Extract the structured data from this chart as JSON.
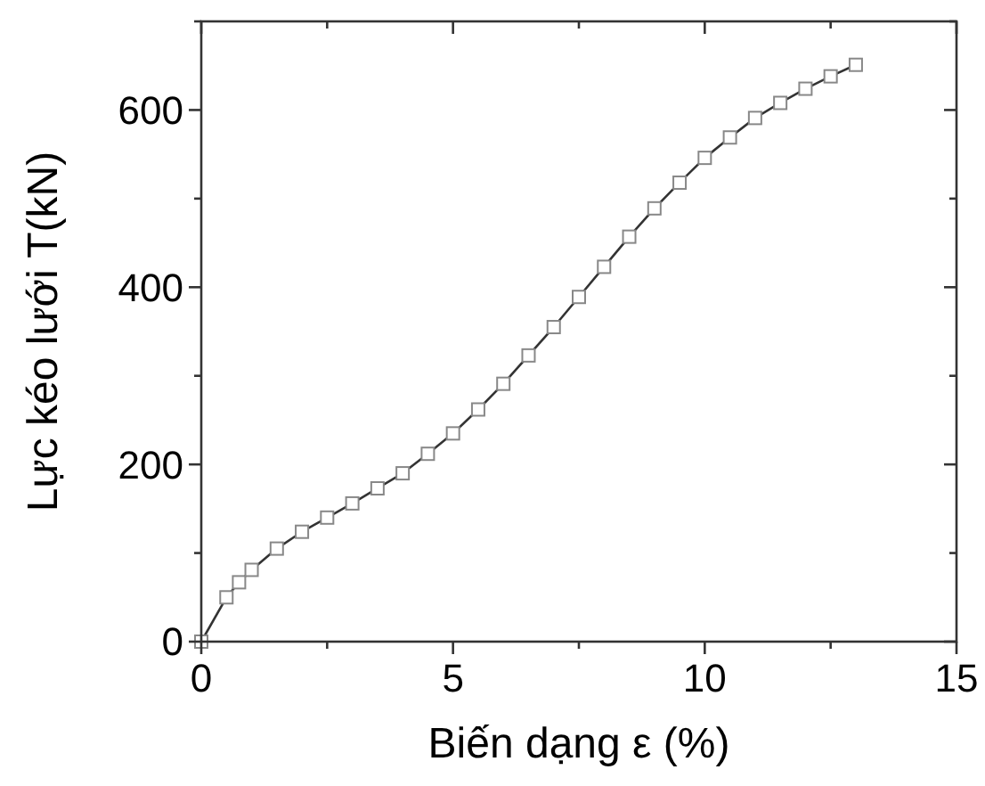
{
  "chart_data": {
    "type": "line",
    "xlabel": "Biến dạng ε (%)",
    "ylabel": "Lực kéo lưới T(kN)",
    "x": [
      0,
      0.5,
      0.75,
      1,
      1.5,
      2,
      2.5,
      3,
      3.5,
      4,
      4.5,
      5,
      5.5,
      6,
      6.5,
      7,
      7.5,
      8,
      8.5,
      9,
      9.5,
      10,
      10.5,
      11,
      11.5,
      12,
      12.5,
      13
    ],
    "series": [
      {
        "color": "#333333",
        "values": [
          0,
          50,
          67,
          81,
          105,
          124,
          140,
          156,
          173,
          190,
          212,
          235,
          262,
          291,
          323,
          355,
          389,
          423,
          457,
          489,
          518,
          546,
          569,
          591,
          608,
          624,
          638,
          651
        ]
      }
    ],
    "xlim": [
      0,
      15
    ],
    "ylim": [
      0,
      700
    ],
    "xticks": [
      0,
      {
        "value": 2.5,
        "label": null
      },
      5,
      {
        "value": 7.5,
        "label": null
      },
      10,
      {
        "value": 12.5,
        "label": null
      },
      15
    ],
    "yticks": [
      0,
      {
        "value": 100,
        "label": null
      },
      200,
      {
        "value": 300,
        "label": null
      },
      400,
      {
        "value": 500,
        "label": null
      },
      600,
      {
        "value": 700,
        "label": null
      }
    ],
    "marker": "square",
    "line_style": "solid",
    "grid": false
  }
}
